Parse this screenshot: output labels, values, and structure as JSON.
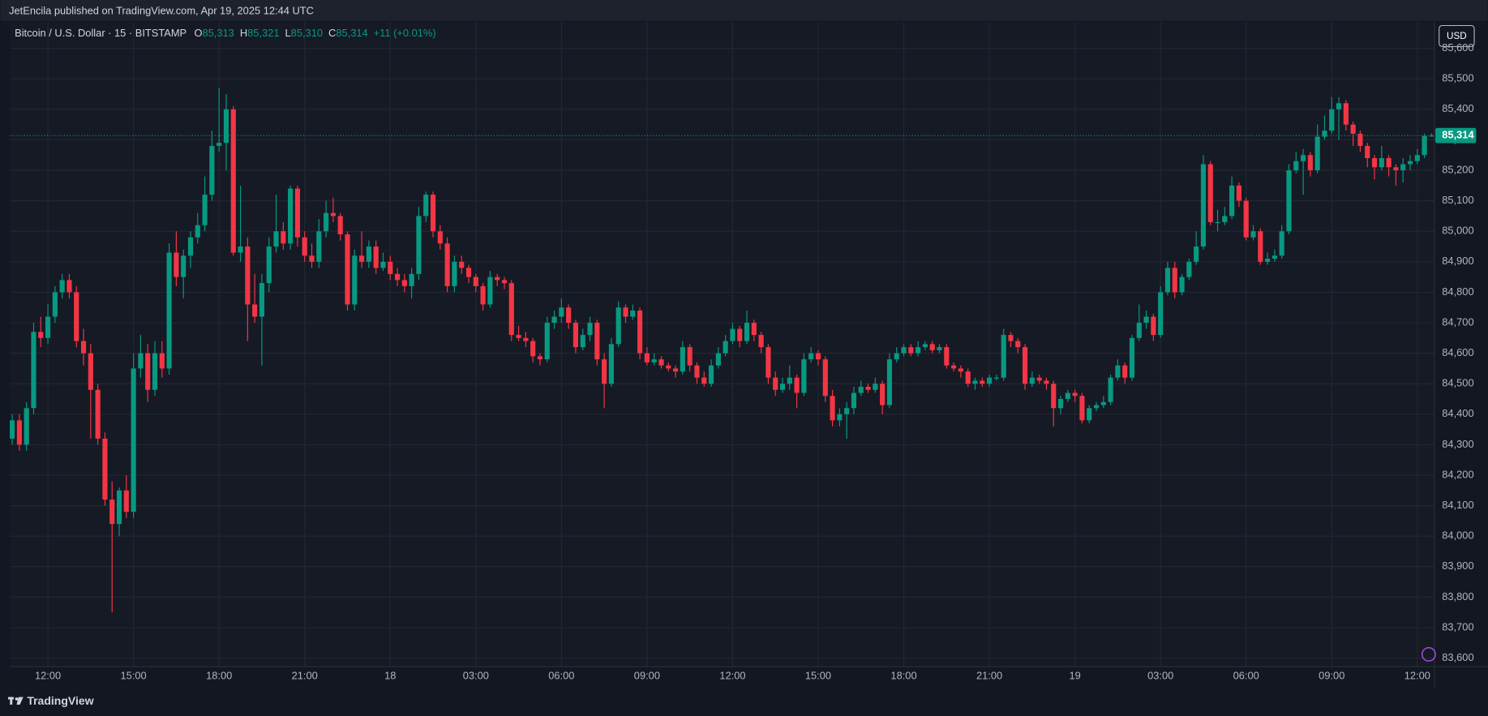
{
  "header": "JetEncila published on TradingView.com, Apr 19, 2025 12:44 UTC",
  "footer": "TradingView",
  "chart_data": {
    "type": "candlestick",
    "title": "Bitcoin / U.S. Dollar · 15 · BITSTAMP",
    "legend_items": [
      {
        "key": "O",
        "value": "85,313"
      },
      {
        "key": "H",
        "value": "85,321"
      },
      {
        "key": "L",
        "value": "85,310"
      },
      {
        "key": "C",
        "value": "85,314"
      }
    ],
    "change": "+11 (+0.01%)",
    "currency": "USD",
    "up_color": "#089981",
    "down_color": "#f23645",
    "grid": true,
    "last_price": {
      "value": 85314,
      "label": "85,314"
    },
    "xlim": [
      -0.32,
      199.4
    ],
    "xticks": [
      {
        "value": 5,
        "label": "12:00"
      },
      {
        "value": 17,
        "label": "15:00"
      },
      {
        "value": 29,
        "label": "18:00"
      },
      {
        "value": 41,
        "label": "21:00"
      },
      {
        "value": 53,
        "label": "18"
      },
      {
        "value": 65,
        "label": "03:00"
      },
      {
        "value": 77,
        "label": "06:00"
      },
      {
        "value": 89,
        "label": "09:00"
      },
      {
        "value": 101,
        "label": "12:00"
      },
      {
        "value": 113,
        "label": "15:00"
      },
      {
        "value": 125,
        "label": "18:00"
      },
      {
        "value": 137,
        "label": "21:00"
      },
      {
        "value": 149,
        "label": "19"
      },
      {
        "value": 161,
        "label": "03:00"
      },
      {
        "value": 173,
        "label": "06:00"
      },
      {
        "value": 185,
        "label": "09:00"
      },
      {
        "value": 197,
        "label": "12:00"
      }
    ],
    "ylim": [
      83572,
      85687
    ],
    "yticks": [
      {
        "value": 83600,
        "label": "83,600"
      },
      {
        "value": 83700,
        "label": "83,700"
      },
      {
        "value": 83800,
        "label": "83,800"
      },
      {
        "value": 83900,
        "label": "83,900"
      },
      {
        "value": 84000,
        "label": "84,000"
      },
      {
        "value": 84100,
        "label": "84,100"
      },
      {
        "value": 84200,
        "label": "84,200"
      },
      {
        "value": 84300,
        "label": "84,300"
      },
      {
        "value": 84400,
        "label": "84,400"
      },
      {
        "value": 84500,
        "label": "84,500"
      },
      {
        "value": 84600,
        "label": "84,600"
      },
      {
        "value": 84700,
        "label": "84,700"
      },
      {
        "value": 84800,
        "label": "84,800"
      },
      {
        "value": 84900,
        "label": "84,900"
      },
      {
        "value": 85000,
        "label": "85,000"
      },
      {
        "value": 85100,
        "label": "85,100"
      },
      {
        "value": 85200,
        "label": "85,200"
      },
      {
        "value": 85300,
        "label": "85,300"
      },
      {
        "value": 85400,
        "label": "85,400"
      },
      {
        "value": 85500,
        "label": "85,500"
      },
      {
        "value": 85600,
        "label": "85,600"
      }
    ],
    "candles": [
      [
        84320,
        84400,
        84300,
        84380
      ],
      [
        84380,
        84400,
        84280,
        84300
      ],
      [
        84300,
        84440,
        84280,
        84420
      ],
      [
        84420,
        84700,
        84400,
        84670
      ],
      [
        84670,
        84720,
        84620,
        84650
      ],
      [
        84650,
        84760,
        84630,
        84720
      ],
      [
        84720,
        84820,
        84700,
        84800
      ],
      [
        84800,
        84860,
        84780,
        84840
      ],
      [
        84840,
        84860,
        84780,
        84800
      ],
      [
        84800,
        84820,
        84620,
        84640
      ],
      [
        84640,
        84680,
        84560,
        84600
      ],
      [
        84600,
        84630,
        84320,
        84480
      ],
      [
        84480,
        84500,
        84300,
        84320
      ],
      [
        84320,
        84340,
        84100,
        84120
      ],
      [
        84120,
        84180,
        83750,
        84040
      ],
      [
        84040,
        84160,
        84000,
        84150
      ],
      [
        84150,
        84200,
        84060,
        84080
      ],
      [
        84080,
        84600,
        84060,
        84550
      ],
      [
        84550,
        84660,
        84520,
        84600
      ],
      [
        84600,
        84630,
        84440,
        84480
      ],
      [
        84480,
        84640,
        84460,
        84600
      ],
      [
        84600,
        84640,
        84520,
        84550
      ],
      [
        84550,
        84960,
        84530,
        84930
      ],
      [
        84930,
        85000,
        84820,
        84850
      ],
      [
        84850,
        84940,
        84780,
        84920
      ],
      [
        84920,
        85000,
        84880,
        84980
      ],
      [
        84980,
        85060,
        84960,
        85020
      ],
      [
        85020,
        85180,
        85000,
        85120
      ],
      [
        85120,
        85330,
        85100,
        85280
      ],
      [
        85280,
        85470,
        85260,
        85290
      ],
      [
        85290,
        85450,
        85200,
        85400
      ],
      [
        85400,
        85410,
        84920,
        84930
      ],
      [
        84930,
        85150,
        84900,
        84950
      ],
      [
        84950,
        84980,
        84640,
        84760
      ],
      [
        84760,
        84860,
        84700,
        84720
      ],
      [
        84720,
        84860,
        84560,
        84830
      ],
      [
        84830,
        84980,
        84800,
        84950
      ],
      [
        84950,
        85120,
        84930,
        85000
      ],
      [
        85000,
        85030,
        84940,
        84960
      ],
      [
        84960,
        85150,
        84940,
        85140
      ],
      [
        85140,
        85150,
        84950,
        84980
      ],
      [
        84980,
        85000,
        84900,
        84920
      ],
      [
        84920,
        84960,
        84880,
        84900
      ],
      [
        84900,
        85040,
        84880,
        85000
      ],
      [
        85000,
        85100,
        84980,
        85060
      ],
      [
        85060,
        85110,
        85030,
        85050
      ],
      [
        85050,
        85060,
        84970,
        84990
      ],
      [
        84990,
        85000,
        84740,
        84760
      ],
      [
        84760,
        84940,
        84740,
        84920
      ],
      [
        84920,
        85000,
        84880,
        84900
      ],
      [
        84900,
        84970,
        84880,
        84950
      ],
      [
        84950,
        84970,
        84860,
        84880
      ],
      [
        84880,
        84930,
        84870,
        84900
      ],
      [
        84900,
        84920,
        84840,
        84860
      ],
      [
        84860,
        84880,
        84820,
        84840
      ],
      [
        84840,
        84860,
        84800,
        84820
      ],
      [
        84820,
        84880,
        84780,
        84860
      ],
      [
        84860,
        85080,
        84840,
        85050
      ],
      [
        85050,
        85130,
        85030,
        85120
      ],
      [
        85120,
        85130,
        84980,
        85000
      ],
      [
        85000,
        85020,
        84940,
        84960
      ],
      [
        84960,
        84980,
        84800,
        84820
      ],
      [
        84820,
        84920,
        84800,
        84900
      ],
      [
        84900,
        84920,
        84860,
        84880
      ],
      [
        84880,
        84890,
        84830,
        84850
      ],
      [
        84850,
        84860,
        84800,
        84820
      ],
      [
        84820,
        84830,
        84740,
        84760
      ],
      [
        84760,
        84870,
        84750,
        84850
      ],
      [
        84850,
        84860,
        84820,
        84840
      ],
      [
        84840,
        84850,
        84810,
        84830
      ],
      [
        84830,
        84840,
        84640,
        84660
      ],
      [
        84660,
        84690,
        84640,
        84650
      ],
      [
        84650,
        84670,
        84620,
        84640
      ],
      [
        84640,
        84650,
        84570,
        84590
      ],
      [
        84590,
        84600,
        84560,
        84580
      ],
      [
        84580,
        84720,
        84570,
        84700
      ],
      [
        84700,
        84740,
        84680,
        84720
      ],
      [
        84720,
        84780,
        84700,
        84750
      ],
      [
        84750,
        84760,
        84680,
        84700
      ],
      [
        84700,
        84710,
        84600,
        84620
      ],
      [
        84620,
        84680,
        84610,
        84660
      ],
      [
        84660,
        84720,
        84640,
        84700
      ],
      [
        84700,
        84710,
        84560,
        84580
      ],
      [
        84580,
        84600,
        84420,
        84500
      ],
      [
        84500,
        84650,
        84490,
        84630
      ],
      [
        84630,
        84770,
        84620,
        84750
      ],
      [
        84750,
        84760,
        84700,
        84720
      ],
      [
        84720,
        84760,
        84710,
        84740
      ],
      [
        84740,
        84750,
        84580,
        84600
      ],
      [
        84600,
        84620,
        84560,
        84570
      ],
      [
        84570,
        84600,
        84560,
        84580
      ],
      [
        84580,
        84590,
        84550,
        84560
      ],
      [
        84560,
        84570,
        84540,
        84550
      ],
      [
        84550,
        84560,
        84520,
        84540
      ],
      [
        84540,
        84640,
        84530,
        84620
      ],
      [
        84620,
        84630,
        84540,
        84560
      ],
      [
        84560,
        84570,
        84500,
        84520
      ],
      [
        84520,
        84540,
        84490,
        84500
      ],
      [
        84500,
        84580,
        84490,
        84560
      ],
      [
        84560,
        84620,
        84550,
        84600
      ],
      [
        84600,
        84660,
        84590,
        84640
      ],
      [
        84640,
        84700,
        84630,
        84680
      ],
      [
        84680,
        84690,
        84620,
        84640
      ],
      [
        84640,
        84740,
        84630,
        84700
      ],
      [
        84700,
        84710,
        84640,
        84660
      ],
      [
        84660,
        84670,
        84600,
        84620
      ],
      [
        84620,
        84630,
        84500,
        84520
      ],
      [
        84520,
        84540,
        84460,
        84480
      ],
      [
        84480,
        84520,
        84470,
        84500
      ],
      [
        84500,
        84560,
        84480,
        84520
      ],
      [
        84520,
        84530,
        84420,
        84470
      ],
      [
        84470,
        84600,
        84460,
        84580
      ],
      [
        84580,
        84620,
        84570,
        84600
      ],
      [
        84600,
        84610,
        84560,
        84580
      ],
      [
        84580,
        84590,
        84440,
        84460
      ],
      [
        84460,
        84480,
        84360,
        84380
      ],
      [
        84380,
        84420,
        84360,
        84400
      ],
      [
        84400,
        84440,
        84320,
        84420
      ],
      [
        84420,
        84490,
        84400,
        84470
      ],
      [
        84470,
        84510,
        84460,
        84490
      ],
      [
        84490,
        84500,
        84470,
        84480
      ],
      [
        84480,
        84520,
        84470,
        84500
      ],
      [
        84500,
        84510,
        84400,
        84430
      ],
      [
        84430,
        84600,
        84420,
        84580
      ],
      [
        84580,
        84620,
        84570,
        84600
      ],
      [
        84600,
        84630,
        84590,
        84620
      ],
      [
        84620,
        84630,
        84590,
        84600
      ],
      [
        84600,
        84640,
        84590,
        84620
      ],
      [
        84620,
        84640,
        84610,
        84630
      ],
      [
        84630,
        84640,
        84600,
        84610
      ],
      [
        84610,
        84630,
        84600,
        84620
      ],
      [
        84620,
        84630,
        84550,
        84560
      ],
      [
        84560,
        84570,
        84540,
        84550
      ],
      [
        84550,
        84560,
        84520,
        84540
      ],
      [
        84540,
        84550,
        84490,
        84500
      ],
      [
        84500,
        84520,
        84480,
        84510
      ],
      [
        84510,
        84520,
        84490,
        84500
      ],
      [
        84500,
        84530,
        84490,
        84520
      ],
      [
        84520,
        84530,
        84510,
        84520
      ],
      [
        84520,
        84680,
        84510,
        84660
      ],
      [
        84660,
        84670,
        84620,
        84640
      ],
      [
        84640,
        84650,
        84600,
        84620
      ],
      [
        84620,
        84630,
        84480,
        84500
      ],
      [
        84500,
        84540,
        84490,
        84520
      ],
      [
        84520,
        84530,
        84500,
        84510
      ],
      [
        84510,
        84520,
        84480,
        84500
      ],
      [
        84500,
        84510,
        84360,
        84420
      ],
      [
        84420,
        84460,
        84400,
        84450
      ],
      [
        84450,
        84480,
        84440,
        84470
      ],
      [
        84470,
        84480,
        84440,
        84460
      ],
      [
        84460,
        84470,
        84370,
        84380
      ],
      [
        84380,
        84430,
        84370,
        84420
      ],
      [
        84420,
        84440,
        84410,
        84430
      ],
      [
        84430,
        84460,
        84420,
        84440
      ],
      [
        84440,
        84530,
        84430,
        84520
      ],
      [
        84520,
        84580,
        84510,
        84560
      ],
      [
        84560,
        84570,
        84500,
        84520
      ],
      [
        84520,
        84660,
        84510,
        84650
      ],
      [
        84650,
        84760,
        84640,
        84700
      ],
      [
        84700,
        84740,
        84680,
        84720
      ],
      [
        84720,
        84730,
        84640,
        84660
      ],
      [
        84660,
        84820,
        84650,
        84800
      ],
      [
        84800,
        84900,
        84790,
        84880
      ],
      [
        84880,
        84900,
        84780,
        84800
      ],
      [
        84800,
        84860,
        84790,
        84850
      ],
      [
        84850,
        84910,
        84840,
        84900
      ],
      [
        84900,
        85000,
        84890,
        84950
      ],
      [
        84950,
        85250,
        84940,
        85220
      ],
      [
        85220,
        85230,
        85020,
        85030
      ],
      [
        85030,
        85070,
        85000,
        85030
      ],
      [
        85030,
        85080,
        85020,
        85050
      ],
      [
        85050,
        85180,
        85040,
        85150
      ],
      [
        85150,
        85160,
        85080,
        85100
      ],
      [
        85100,
        85110,
        84970,
        84980
      ],
      [
        84980,
        85020,
        84970,
        85000
      ],
      [
        85000,
        85010,
        84890,
        84900
      ],
      [
        84900,
        84930,
        84890,
        84910
      ],
      [
        84910,
        84940,
        84900,
        84920
      ],
      [
        84920,
        85020,
        84910,
        85000
      ],
      [
        85000,
        85220,
        84990,
        85200
      ],
      [
        85200,
        85260,
        85190,
        85230
      ],
      [
        85230,
        85270,
        85120,
        85250
      ],
      [
        85250,
        85260,
        85180,
        85200
      ],
      [
        85200,
        85350,
        85190,
        85310
      ],
      [
        85310,
        85380,
        85300,
        85330
      ],
      [
        85330,
        85440,
        85320,
        85400
      ],
      [
        85400,
        85440,
        85300,
        85420
      ],
      [
        85420,
        85430,
        85330,
        85350
      ],
      [
        85350,
        85360,
        85280,
        85320
      ],
      [
        85320,
        85330,
        85260,
        85280
      ],
      [
        85280,
        85290,
        85210,
        85240
      ],
      [
        85240,
        85250,
        85170,
        85210
      ],
      [
        85210,
        85280,
        85200,
        85240
      ],
      [
        85240,
        85250,
        85180,
        85210
      ],
      [
        85210,
        85220,
        85150,
        85200
      ],
      [
        85200,
        85240,
        85160,
        85220
      ],
      [
        85220,
        85250,
        85200,
        85230
      ],
      [
        85230,
        85270,
        85220,
        85250
      ],
      [
        85250,
        85320,
        85240,
        85313
      ],
      [
        85313,
        85321,
        85310,
        85314
      ]
    ]
  }
}
